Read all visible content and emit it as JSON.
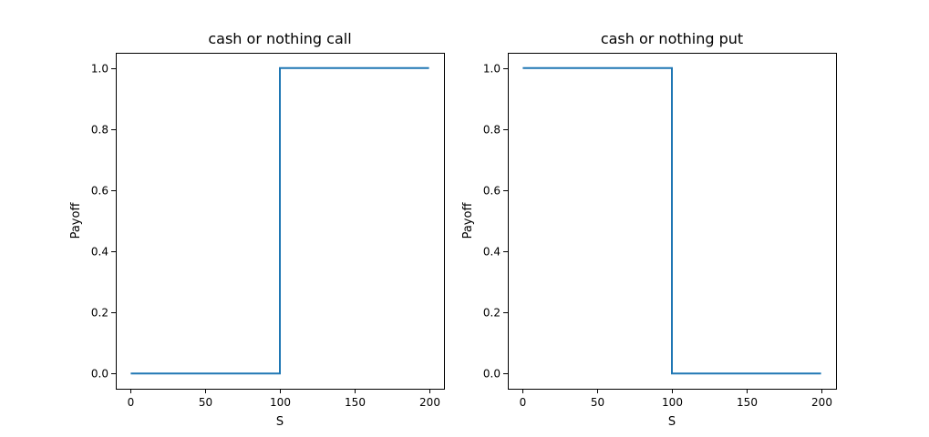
{
  "chart_data": [
    {
      "type": "line",
      "title": "cash or nothing call",
      "xlabel": "S",
      "ylabel": "Payoff",
      "xlim": [
        -10,
        210
      ],
      "ylim": [
        -0.05,
        1.05
      ],
      "xticks": [
        0,
        50,
        100,
        150,
        200
      ],
      "yticks": [
        0.0,
        0.2,
        0.4,
        0.6,
        0.8,
        1.0
      ],
      "xtick_labels": [
        "0",
        "50",
        "100",
        "150",
        "200"
      ],
      "ytick_labels": [
        "0.0",
        "0.2",
        "0.4",
        "0.6",
        "0.8",
        "1.0"
      ],
      "grid": false,
      "series": [
        {
          "color": "#1f77b4",
          "x": [
            0,
            100,
            100,
            200
          ],
          "y": [
            0,
            0,
            1,
            1
          ]
        }
      ]
    },
    {
      "type": "line",
      "title": "cash or nothing put",
      "xlabel": "S",
      "ylabel": "Payoff",
      "xlim": [
        -10,
        210
      ],
      "ylim": [
        -0.05,
        1.05
      ],
      "xticks": [
        0,
        50,
        100,
        150,
        200
      ],
      "yticks": [
        0.0,
        0.2,
        0.4,
        0.6,
        0.8,
        1.0
      ],
      "xtick_labels": [
        "0",
        "50",
        "100",
        "150",
        "200"
      ],
      "ytick_labels": [
        "0.0",
        "0.2",
        "0.4",
        "0.6",
        "0.8",
        "1.0"
      ],
      "grid": false,
      "series": [
        {
          "color": "#1f77b4",
          "x": [
            0,
            100,
            100,
            200
          ],
          "y": [
            1,
            1,
            0,
            0
          ]
        }
      ]
    }
  ]
}
